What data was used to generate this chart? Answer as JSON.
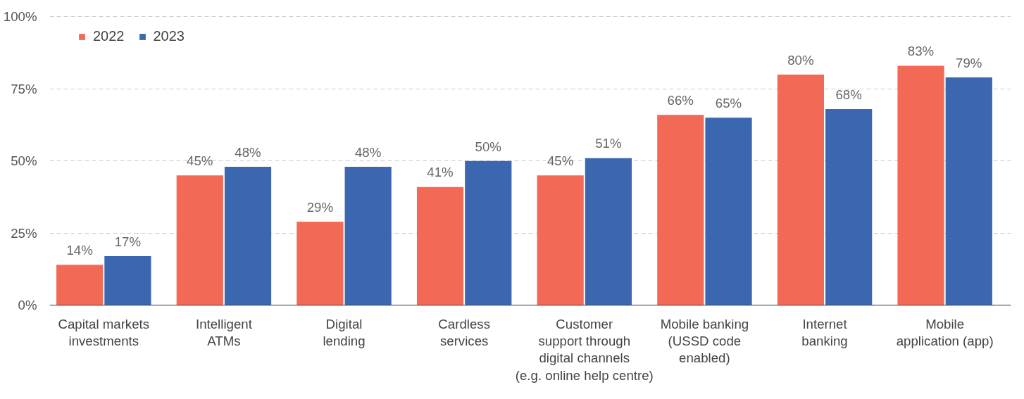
{
  "chart_data": {
    "type": "bar",
    "categories": [
      "Capital markets\ninvestments",
      "Intelligent\nATMs",
      "Digital\nlending",
      "Cardless\nservices",
      "Customer\nsupport through\ndigital channels\n(e.g. online help centre)",
      "Mobile banking\n(USSD code\nenabled)",
      "Internet\nbanking",
      "Mobile\napplication (app)"
    ],
    "series": [
      {
        "name": "2022",
        "color": "#f26a55",
        "values": [
          14,
          45,
          29,
          41,
          45,
          66,
          80,
          83
        ],
        "value_labels": [
          "14%",
          "45%",
          "29%",
          "41%",
          "45%",
          "66%",
          "80%",
          "83%"
        ]
      },
      {
        "name": "2023",
        "color": "#3b67b0",
        "values": [
          17,
          48,
          48,
          50,
          51,
          65,
          68,
          79
        ],
        "value_labels": [
          "17%",
          "48%",
          "48%",
          "50%",
          "51%",
          "65%",
          "68%",
          "79%"
        ]
      }
    ],
    "ylim": [
      0,
      100
    ],
    "yticks": [
      {
        "value": 0,
        "label": "0%"
      },
      {
        "value": 25,
        "label": "25%"
      },
      {
        "value": 50,
        "label": "50%"
      },
      {
        "value": 75,
        "label": "75%"
      },
      {
        "value": 100,
        "label": "100%"
      }
    ],
    "grid": "y",
    "legend": "top left"
  }
}
